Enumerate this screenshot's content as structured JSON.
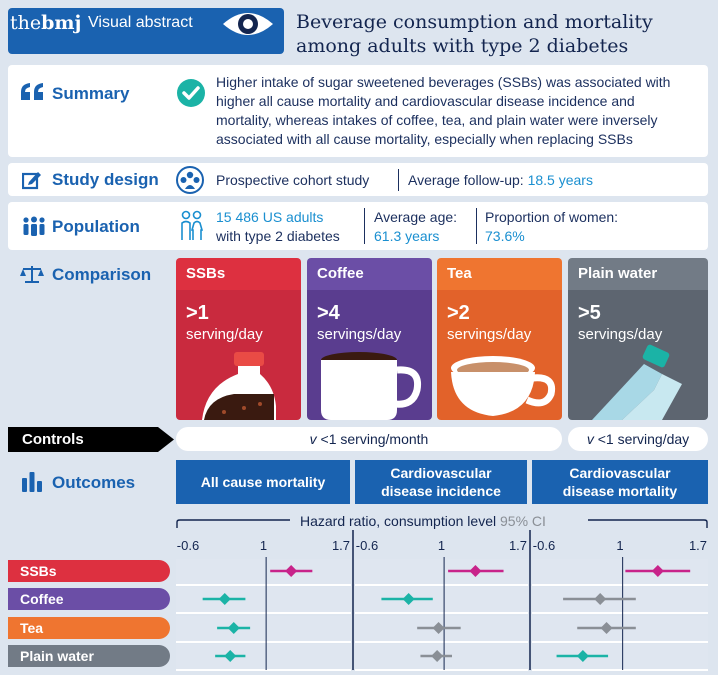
{
  "header": {
    "brand_prefix": "the",
    "brand_bold": "bmj",
    "label": "Visual abstract",
    "title_line1": "Beverage consumption and mortality",
    "title_line2": "among adults with type 2 diabetes"
  },
  "summary": {
    "label": "Summary",
    "line1": "Higher intake of sugar sweetened beverages (SSBs) was associated with",
    "line2": "higher all cause mortality and cardiovascular disease incidence and",
    "line3": "mortality, whereas intakes of coffee, tea, and plain water were inversely",
    "line4": "associated with all cause mortality, especially when replacing SSBs"
  },
  "study_design": {
    "label": "Study design",
    "type": "Prospective cohort study",
    "followup_label": "Average follow-up:",
    "followup_value": "18.5 years"
  },
  "population": {
    "label": "Population",
    "count": "15 486 US adults",
    "count_sub": "with type 2 diabetes",
    "age_label": "Average  age:",
    "age_value": "61.3 years",
    "women_label": "Proportion of women:",
    "women_value": "73.6%"
  },
  "comparison": {
    "label": "Comparison",
    "items": [
      {
        "name": "SSBs",
        "amount": ">1",
        "unit": "serving/day",
        "color": "#c92a3e",
        "head": "#dd3040"
      },
      {
        "name": "Coffee",
        "amount": ">4",
        "unit": "servings/day",
        "color": "#5a3d8f",
        "head": "#6b4ea6"
      },
      {
        "name": "Tea",
        "amount": ">2",
        "unit": "servings/day",
        "color": "#e2622a",
        "head": "#ef7530"
      },
      {
        "name": "Plain water",
        "amount": ">5",
        "unit": "servings/day",
        "color": "#5d6570",
        "head": "#727b86"
      }
    ]
  },
  "controls": {
    "label": "Controls",
    "v_prefix1": "v",
    "value1": "<1 serving/month",
    "v_prefix2": "v",
    "value2": "<1 serving/day"
  },
  "outcomes": {
    "label": "Outcomes",
    "heads": [
      {
        "line1": "All cause mortality",
        "line2": ""
      },
      {
        "line1": "Cardiovascular",
        "line2": "disease incidence"
      },
      {
        "line1": "Cardiovascular",
        "line2": "disease mortality"
      }
    ],
    "axis_title": "Hazard ratio, consumption level",
    "ci_label": "95% CI",
    "ticks": [
      "-0.6",
      "1",
      "1.7"
    ],
    "rows": [
      {
        "name": "SSBs",
        "color": "#dd3040"
      },
      {
        "name": "Coffee",
        "color": "#6b4ea6"
      },
      {
        "name": "Tea",
        "color": "#ef7530"
      },
      {
        "name": "Plain water",
        "color": "#727b86"
      }
    ],
    "colors": {
      "pos": "#c8238a",
      "neg": "#1bb3a6",
      "null": "#8a8f96"
    }
  },
  "chart_data": {
    "type": "scatter",
    "x_scale": "log",
    "panels": [
      "All cause mortality",
      "Cardiovascular disease incidence",
      "Cardiovascular disease mortality"
    ],
    "rows": [
      "SSBs",
      "Coffee",
      "Tea",
      "Plain water"
    ],
    "points": [
      [
        {
          "hr": 1.2,
          "lo": 1.03,
          "hi": 1.4,
          "sig": "pos"
        },
        {
          "hr": 1.26,
          "lo": 1.03,
          "hi": 1.55,
          "sig": "pos"
        },
        {
          "hr": 1.29,
          "lo": 1.02,
          "hi": 1.63,
          "sig": "pos"
        }
      ],
      [
        {
          "hr": 0.74,
          "lo": 0.63,
          "hi": 0.86,
          "sig": "neg"
        },
        {
          "hr": 0.77,
          "lo": 0.63,
          "hi": 0.92,
          "sig": "neg"
        },
        {
          "hr": 0.85,
          "lo": 0.65,
          "hi": 1.1,
          "sig": "null"
        }
      ],
      [
        {
          "hr": 0.79,
          "lo": 0.7,
          "hi": 0.89,
          "sig": "neg"
        },
        {
          "hr": 0.96,
          "lo": 0.82,
          "hi": 1.13,
          "sig": "null"
        },
        {
          "hr": 0.89,
          "lo": 0.72,
          "hi": 1.1,
          "sig": "null"
        }
      ],
      [
        {
          "hr": 0.77,
          "lo": 0.69,
          "hi": 0.86,
          "sig": "neg"
        },
        {
          "hr": 0.95,
          "lo": 0.84,
          "hi": 1.06,
          "sig": "null"
        },
        {
          "hr": 0.75,
          "lo": 0.62,
          "hi": 0.9,
          "sig": "neg"
        }
      ]
    ]
  }
}
